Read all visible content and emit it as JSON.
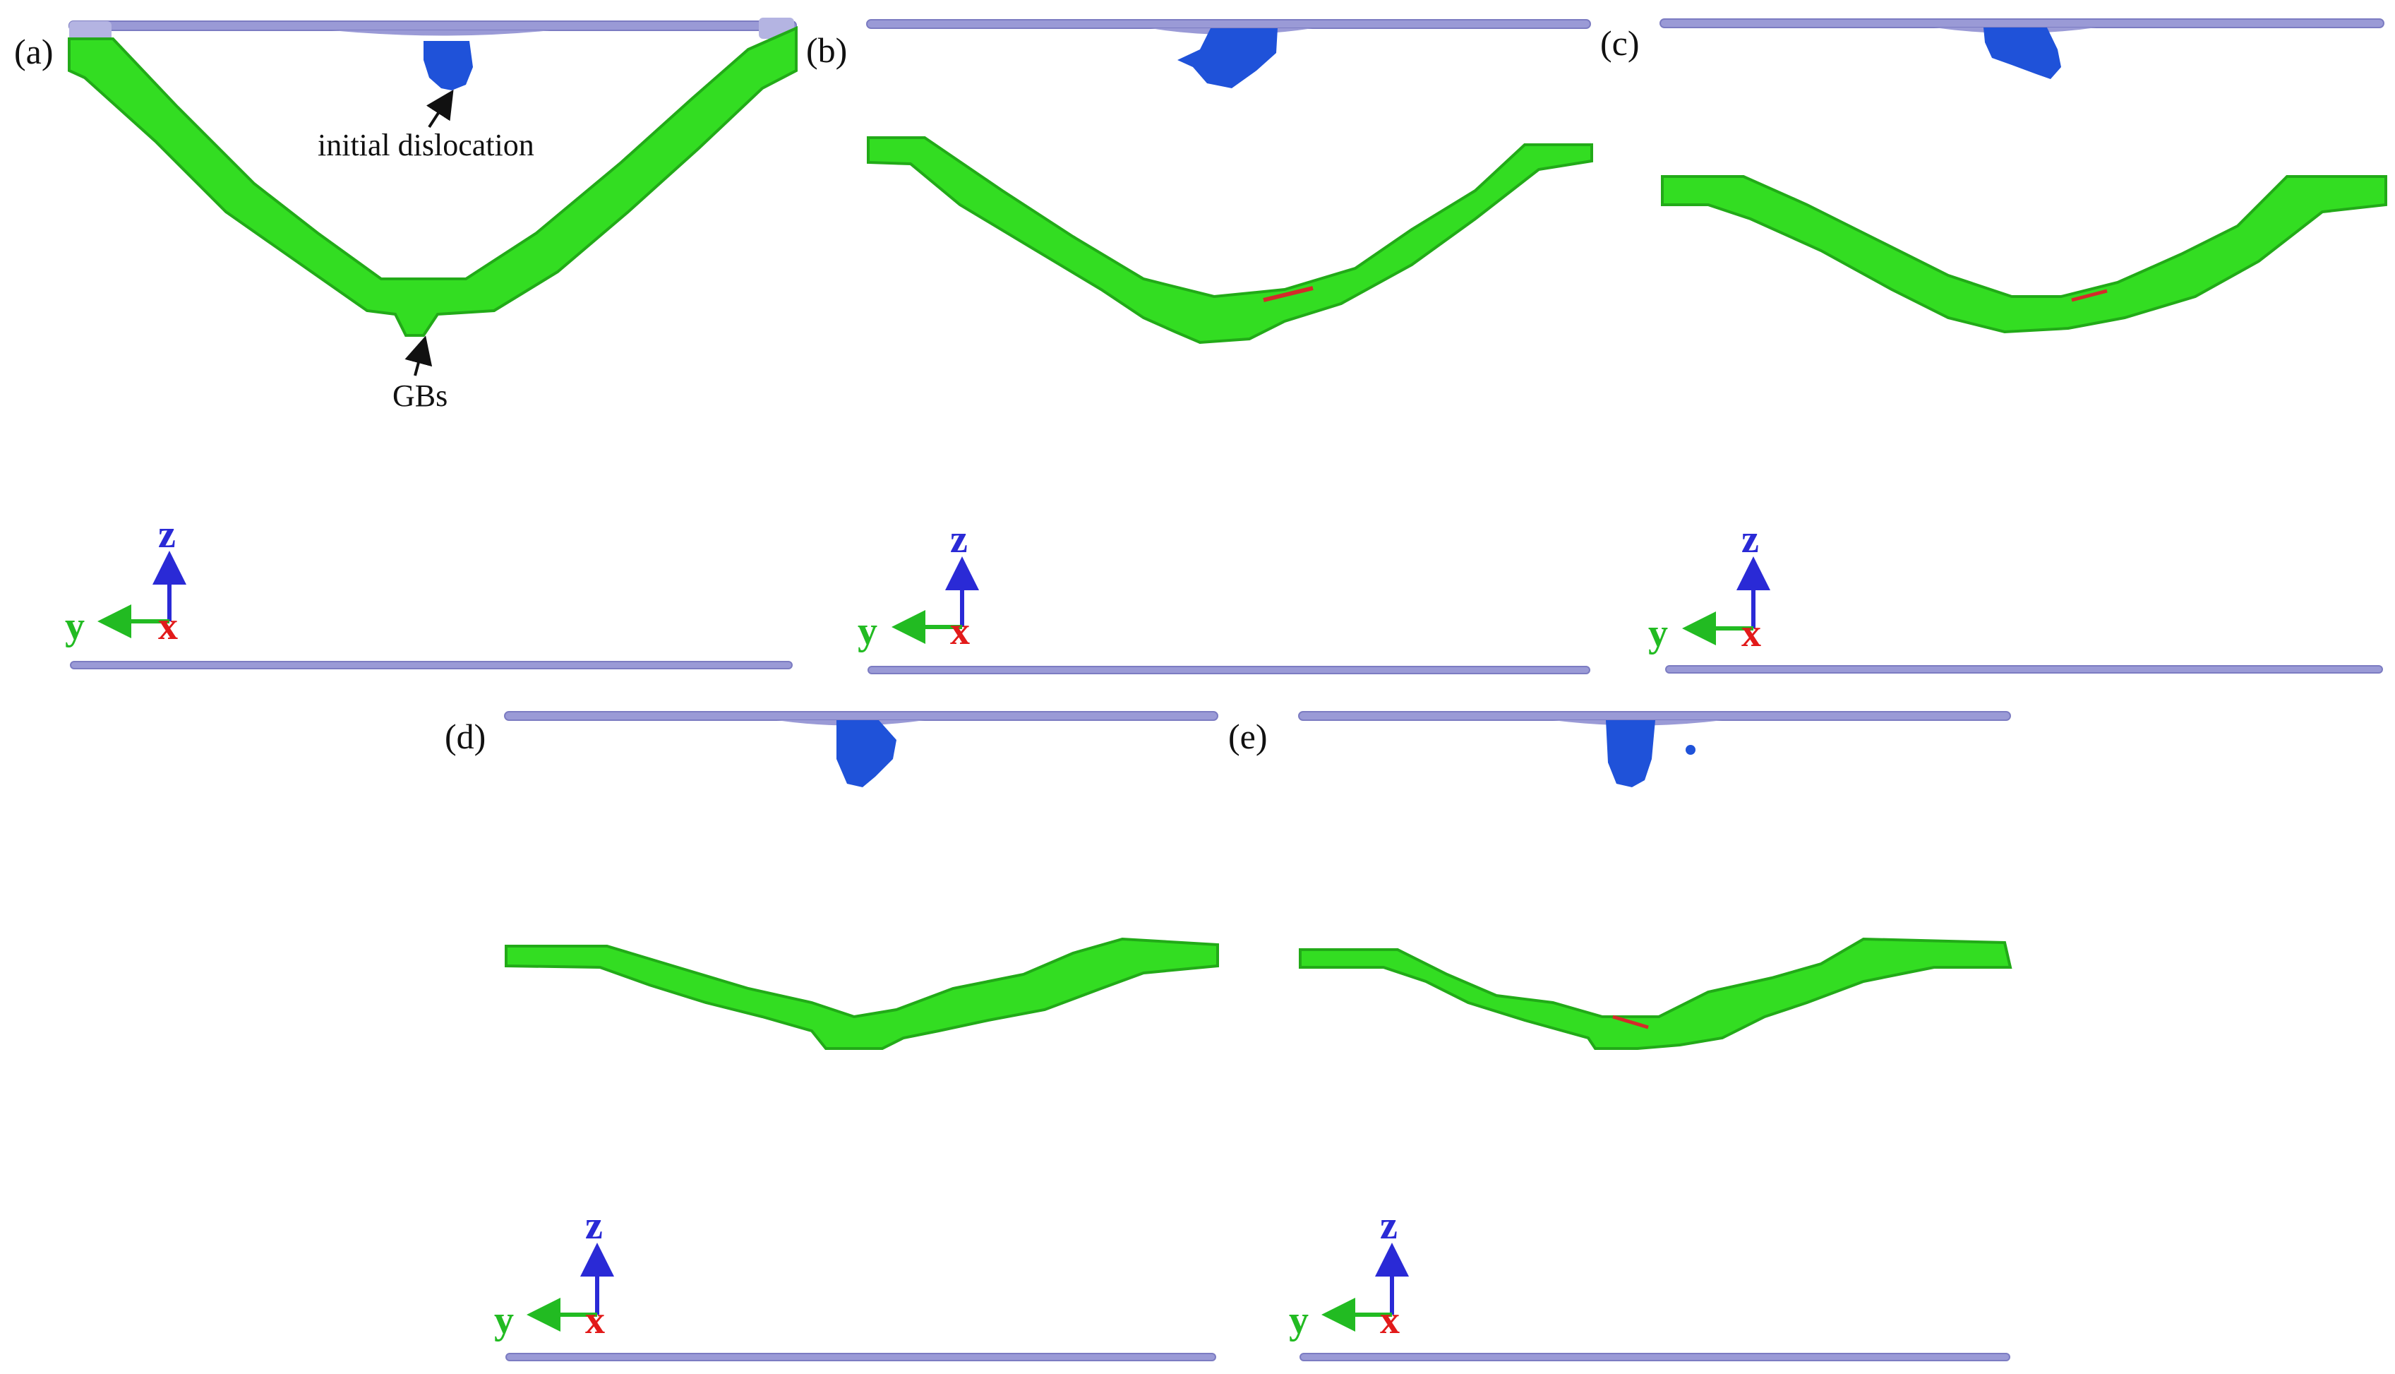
{
  "figure": {
    "panels": [
      {
        "label": "(a)"
      },
      {
        "label": "(b)"
      },
      {
        "label": "(c)"
      },
      {
        "label": "(d)"
      },
      {
        "label": "(e)"
      }
    ],
    "annotations": {
      "dislocation": "initial dislocation",
      "gbs": "GBs"
    },
    "axes": {
      "z": "z",
      "y": "y",
      "x": "x"
    },
    "colors": {
      "surface": "#9a9ad6",
      "grain_boundary": "#33dd22",
      "dislocation": "#1f52d9",
      "z_axis": "#2a2ad6",
      "y_axis": "#22bb22",
      "x_axis": "#e21a1a",
      "stacking_fault": "#d42a2a"
    }
  }
}
